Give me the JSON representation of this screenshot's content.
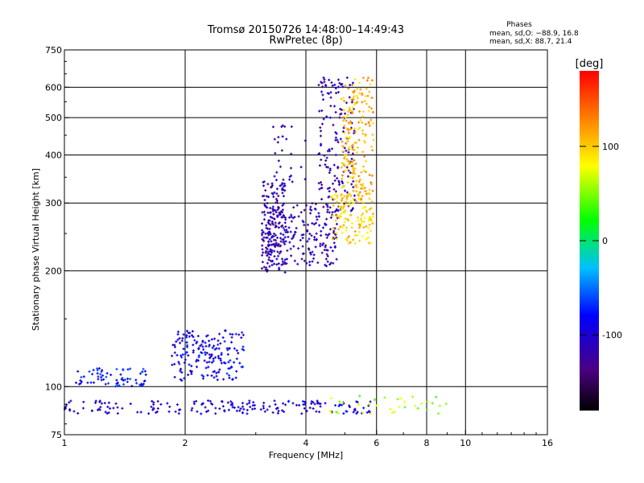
{
  "chart_data": {
    "type": "scatter",
    "title": "Tromsø 20150726 14:48:00–14:49:43",
    "subtitle": "RwPretec (8p)",
    "xlabel": "Frequency [MHz]",
    "ylabel": "Stationary phase Virtual Height [km]",
    "x_scale": "log",
    "y_scale": "log",
    "xlim": [
      1,
      16
    ],
    "ylim": [
      75,
      750
    ],
    "x_ticks": [
      1,
      2,
      4,
      6,
      8,
      10,
      16
    ],
    "y_ticks": [
      75,
      100,
      200,
      300,
      400,
      500,
      600,
      750
    ],
    "grid": true,
    "phases_box": {
      "title": "Phases",
      "line_o": "mean, sd,O: −88.9, 16.8",
      "line_x": "mean, sd,X:  88.7, 21.4"
    },
    "colorbar": {
      "label": "[deg]",
      "range": [
        -180,
        180
      ],
      "ticks": [
        100,
        0,
        -100
      ],
      "colormap": "rainbow",
      "colors": [
        "#000000",
        "#4b0082",
        "#0000ff",
        "#00c0ff",
        "#00ff00",
        "#ffff00",
        "#ff8000",
        "#ff0000"
      ]
    },
    "clusters": [
      {
        "f0": 1.0,
        "f1": 1.95,
        "h0": 85,
        "h1": 92,
        "phase": -100,
        "n": 60
      },
      {
        "f0": 2.05,
        "f1": 5.8,
        "h0": 85,
        "h1": 92,
        "phase": -95,
        "n": 130
      },
      {
        "f0": 4.6,
        "f1": 9.0,
        "h0": 85,
        "h1": 95,
        "phase": 60,
        "n": 35
      },
      {
        "f0": 1.05,
        "f1": 1.6,
        "h0": 100,
        "h1": 112,
        "phase": -80,
        "n": 70
      },
      {
        "f0": 1.85,
        "f1": 2.8,
        "h0": 103,
        "h1": 140,
        "phase": -90,
        "n": 180
      },
      {
        "f0": 3.1,
        "f1": 3.55,
        "h0": 198,
        "h1": 345,
        "phase": -115,
        "n": 150
      },
      {
        "f0": 3.2,
        "f1": 4.8,
        "h0": 205,
        "h1": 300,
        "phase": -115,
        "n": 220
      },
      {
        "f0": 3.3,
        "f1": 4.0,
        "h0": 340,
        "h1": 480,
        "phase": -110,
        "n": 25
      },
      {
        "f0": 4.3,
        "f1": 5.3,
        "h0": 280,
        "h1": 640,
        "phase": -115,
        "n": 160
      },
      {
        "f0": 4.6,
        "f1": 5.9,
        "h0": 235,
        "h1": 320,
        "phase": 95,
        "n": 120
      },
      {
        "f0": 4.9,
        "f1": 5.9,
        "h0": 300,
        "h1": 640,
        "phase": 110,
        "n": 200
      }
    ]
  }
}
